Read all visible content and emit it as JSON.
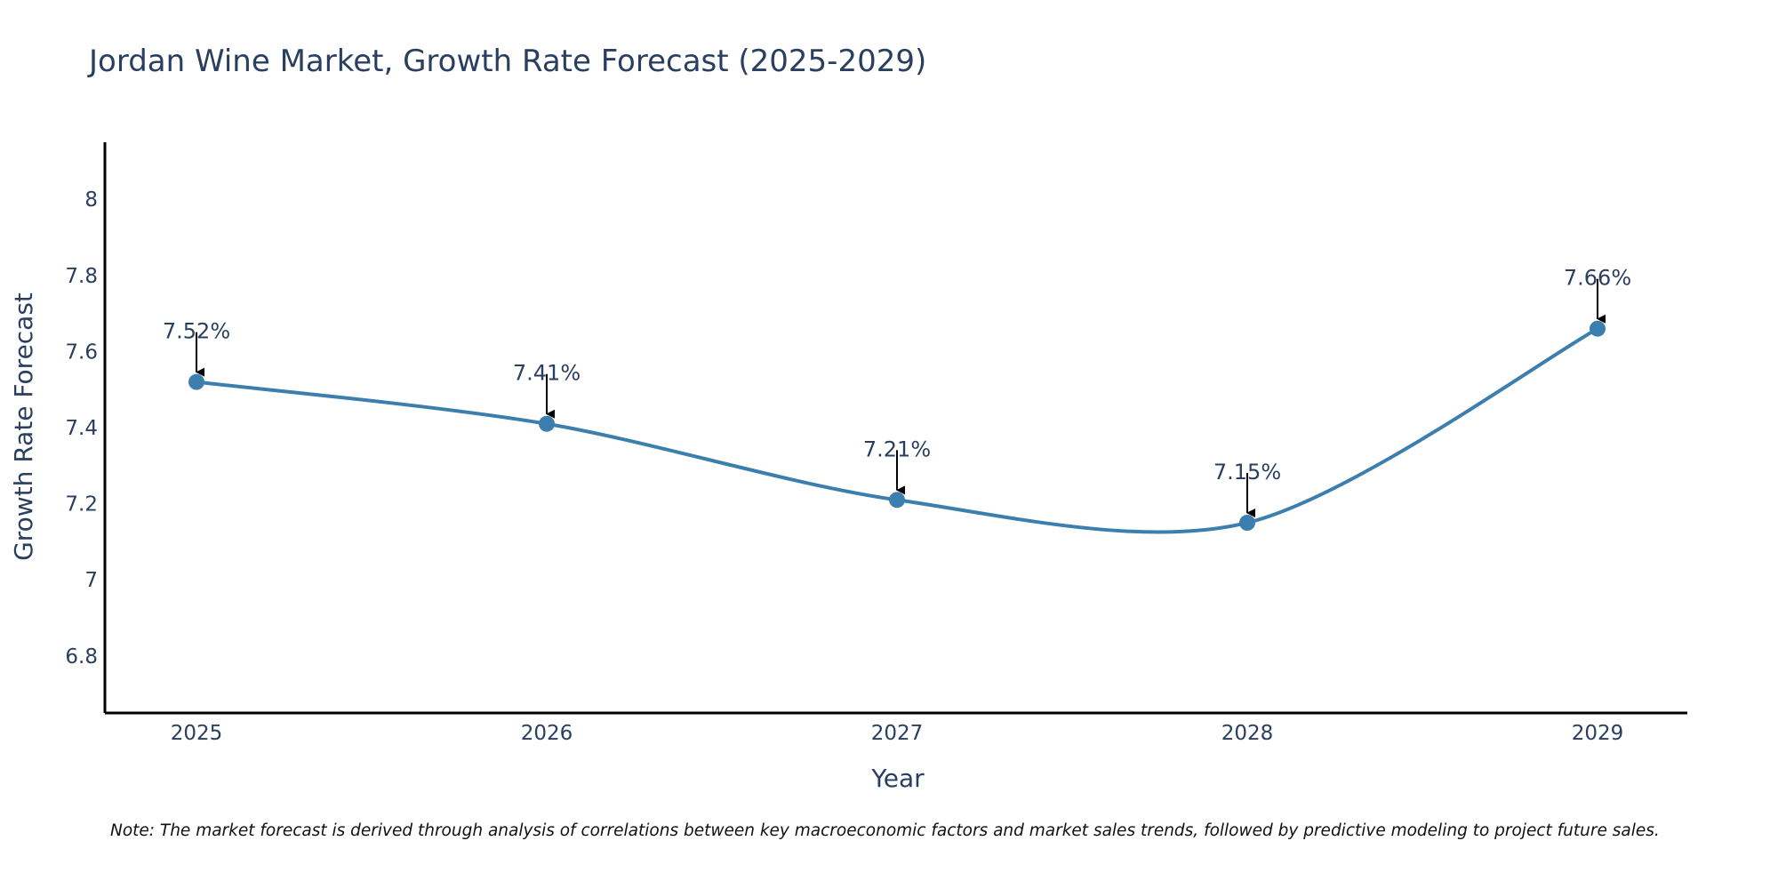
{
  "chart_data": {
    "type": "line",
    "title": "Jordan Wine Market, Growth Rate Forecast (2025-2029)",
    "xlabel": "Year",
    "ylabel": "Growth Rate Forecast",
    "categories": [
      "2025",
      "2026",
      "2027",
      "2028",
      "2029"
    ],
    "values": [
      7.52,
      7.41,
      7.21,
      7.15,
      7.66
    ],
    "data_labels": [
      "7.52%",
      "7.41%",
      "7.21%",
      "7.15%",
      "7.66%"
    ],
    "ylim": [
      6.65,
      8.15
    ],
    "yticks": [
      6.8,
      7,
      7.2,
      7.4,
      7.6,
      7.8,
      8
    ],
    "ytick_labels": [
      "6.8",
      "7",
      "7.2",
      "7.4",
      "7.6",
      "7.8",
      "8"
    ],
    "line_shape": "spline",
    "grid": false,
    "note": "Note: The market forecast is derived through analysis of correlations between key macroeconomic factors and market sales trends, followed by predictive modeling to project future sales."
  },
  "colors": {
    "line": "#3c7eae",
    "marker": "#3c7eae",
    "axis": "#000000",
    "text": "#2a3f5f",
    "arrow": "#000000"
  }
}
